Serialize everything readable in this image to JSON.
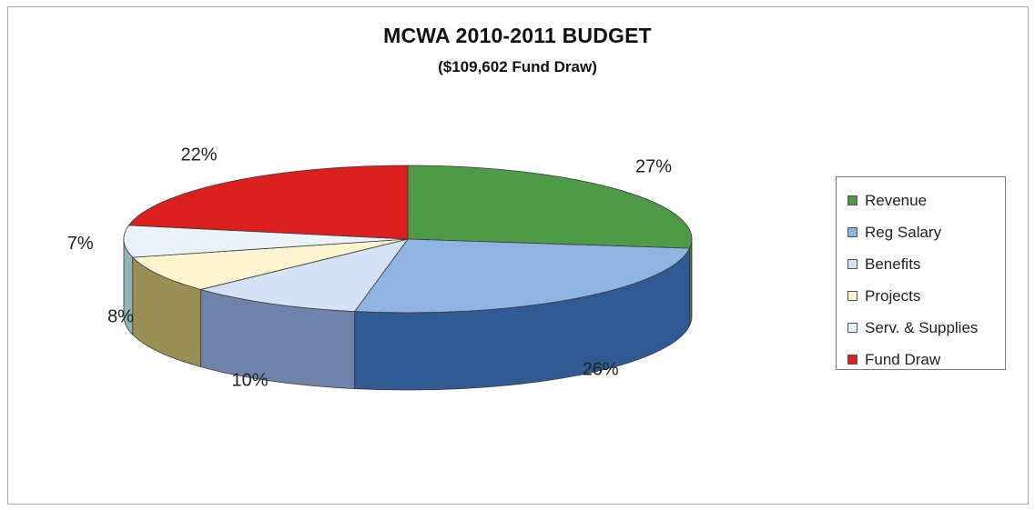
{
  "chart_data": {
    "type": "pie",
    "title": "MCWA  2010-2011 BUDGET",
    "subtitle": "($109,602 Fund Draw)",
    "slices": [
      {
        "name": "Revenue",
        "value": 27,
        "label": "27%",
        "color": "#4f9a47",
        "side_color": "#3b7a35"
      },
      {
        "name": "Reg Salary",
        "value": 26,
        "label": "26%",
        "color": "#8fb4e3",
        "side_color": "#2f5a93"
      },
      {
        "name": "Benefits",
        "value": 10,
        "label": "10%",
        "color": "#d6e2f4",
        "side_color": "#6f82a9"
      },
      {
        "name": "Projects",
        "value": 8,
        "label": "8%",
        "color": "#fdf5cf",
        "side_color": "#9a8f55"
      },
      {
        "name": "Serv. & Supplies",
        "value": 7,
        "label": "7%",
        "color": "#e9f3f9",
        "side_color": "#8fb3b8"
      },
      {
        "name": "Fund Draw",
        "value": 22,
        "label": "22%",
        "color": "#dc1f1f",
        "side_color": "#a01414"
      }
    ],
    "legend_position": "right"
  }
}
